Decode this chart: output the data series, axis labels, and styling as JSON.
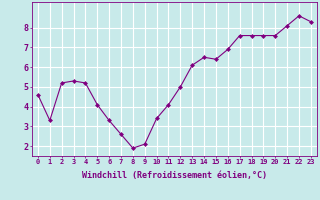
{
  "xlabel": "Windchill (Refroidissement éolien,°C)",
  "x": [
    0,
    1,
    2,
    3,
    4,
    5,
    6,
    7,
    8,
    9,
    10,
    11,
    12,
    13,
    14,
    15,
    16,
    17,
    18,
    19,
    20,
    21,
    22,
    23
  ],
  "y": [
    4.6,
    3.3,
    5.2,
    5.3,
    5.2,
    4.1,
    3.3,
    2.6,
    1.9,
    2.1,
    3.4,
    4.1,
    5.0,
    6.1,
    6.5,
    6.4,
    6.9,
    7.6,
    7.6,
    7.6,
    7.6,
    8.1,
    8.6,
    8.3
  ],
  "line_color": "#800080",
  "marker": "D",
  "marker_size": 2.0,
  "background_color": "#c8eaea",
  "grid_color": "#ffffff",
  "ylim": [
    1.5,
    9.3
  ],
  "xlim": [
    -0.5,
    23.5
  ],
  "yticks": [
    2,
    3,
    4,
    5,
    6,
    7,
    8
  ],
  "xticks": [
    0,
    1,
    2,
    3,
    4,
    5,
    6,
    7,
    8,
    9,
    10,
    11,
    12,
    13,
    14,
    15,
    16,
    17,
    18,
    19,
    20,
    21,
    22,
    23
  ],
  "tick_color": "#800080",
  "label_color": "#800080",
  "tick_fontsize": 5.0,
  "xlabel_fontsize": 6.0,
  "axes_color": "#800080",
  "spine_color": "#555555"
}
